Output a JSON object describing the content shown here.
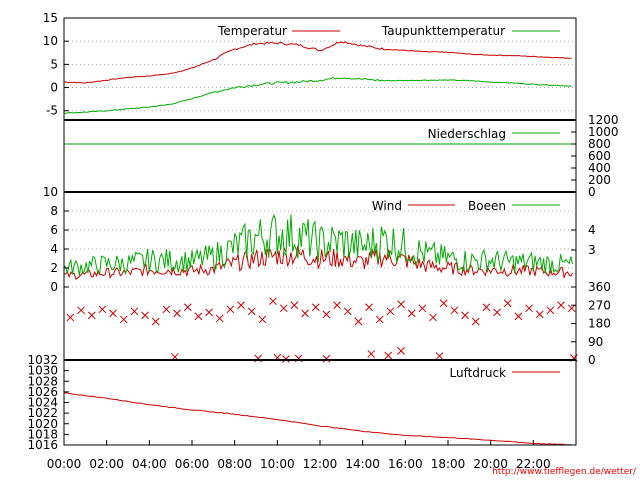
{
  "chart_data": [
    {
      "type": "line",
      "panel": "temperature",
      "ylim": [
        -7,
        15
      ],
      "yticks": [
        "15",
        "10",
        "5",
        "0",
        "-5"
      ],
      "series": [
        {
          "name": "Temperatur",
          "color": "#cc0000",
          "x": [
            0,
            1,
            2,
            3,
            4,
            5,
            6,
            7,
            8,
            9,
            10,
            11,
            12,
            13,
            14,
            15,
            16,
            17,
            18,
            19,
            20,
            21,
            22,
            23.9
          ],
          "values": [
            1.2,
            1.0,
            1.6,
            2.2,
            2.5,
            3.0,
            4.2,
            6.0,
            8.3,
            9.5,
            9.6,
            9.2,
            8.0,
            10.0,
            9.0,
            8.3,
            8.0,
            7.7,
            7.6,
            7.2,
            7.0,
            6.9,
            6.7,
            6.3
          ]
        },
        {
          "name": "Taupunkttemperatur",
          "color": "#00aa00",
          "x": [
            0,
            1,
            2,
            3,
            4,
            5,
            6,
            7,
            8,
            9,
            10,
            11,
            12,
            13,
            14,
            15,
            16,
            17,
            18,
            19,
            20,
            21,
            22,
            23.9
          ],
          "values": [
            -5.5,
            -5.3,
            -5.0,
            -4.6,
            -4.2,
            -3.6,
            -2.4,
            -1.0,
            0.0,
            0.6,
            1.0,
            1.2,
            1.6,
            2.2,
            1.8,
            1.5,
            1.5,
            1.6,
            1.6,
            1.5,
            1.2,
            1.0,
            0.7,
            0.3
          ]
        }
      ]
    },
    {
      "type": "line",
      "panel": "precipitation",
      "ylim": [
        0,
        1200
      ],
      "yticks_right": [
        "1200",
        "1000",
        "800",
        "600",
        "400",
        "200",
        "0"
      ],
      "series": [
        {
          "name": "Niederschlag",
          "color": "#00aa00",
          "x": [
            0,
            24
          ],
          "values": [
            800,
            800
          ]
        }
      ]
    },
    {
      "type": "line",
      "panel": "wind",
      "ylim": [
        0,
        10
      ],
      "yticks": [
        "10",
        "8",
        "6",
        "4",
        "2",
        "0"
      ],
      "yticks_right": [
        "4",
        "3"
      ],
      "series": [
        {
          "name": "Wind",
          "color": "#cc0000",
          "x": [
            0,
            1,
            2,
            3,
            4,
            5,
            6,
            7,
            8,
            9,
            10,
            11,
            12,
            13,
            14,
            15,
            16,
            17,
            18,
            19,
            20,
            21,
            22,
            23.9
          ],
          "values": [
            1.2,
            1.3,
            1.5,
            1.5,
            1.8,
            1.8,
            1.7,
            1.9,
            2.5,
            3.0,
            3.3,
            3.4,
            3.0,
            3.0,
            2.6,
            3.2,
            2.8,
            2.2,
            2.0,
            1.8,
            1.8,
            1.7,
            1.7,
            1.5
          ]
        },
        {
          "name": "Boeen",
          "color": "#00aa00",
          "x": [
            0,
            1,
            2,
            3,
            4,
            5,
            6,
            7,
            8,
            9,
            10,
            11,
            12,
            13,
            14,
            15,
            16,
            17,
            18,
            19,
            20,
            21,
            22,
            23.9
          ],
          "values": [
            2.0,
            2.2,
            2.4,
            2.5,
            2.8,
            2.8,
            2.7,
            3.2,
            4.2,
            5.2,
            5.6,
            5.4,
            4.6,
            4.8,
            4.2,
            5.0,
            4.3,
            3.4,
            3.0,
            2.8,
            2.8,
            2.6,
            2.6,
            2.3
          ]
        }
      ]
    },
    {
      "type": "scatter",
      "panel": "wind-direction",
      "ylim": [
        0,
        360
      ],
      "yticks_right": [
        "360",
        "270",
        "180",
        "90",
        "0"
      ],
      "series": [
        {
          "color": "#cc0000",
          "x": [
            0.3,
            0.8,
            1.3,
            1.8,
            2.3,
            2.8,
            3.3,
            3.8,
            4.3,
            4.8,
            5.3,
            5.8,
            6.3,
            6.8,
            7.3,
            7.8,
            8.3,
            8.8,
            9.3,
            9.8,
            10.3,
            10.8,
            11.3,
            11.8,
            12.3,
            12.8,
            13.3,
            13.8,
            14.3,
            14.8,
            15.3,
            15.8,
            16.3,
            16.8,
            17.3,
            17.8,
            18.3,
            18.8,
            19.3,
            19.8,
            20.3,
            20.8,
            21.3,
            21.8,
            22.3,
            22.8,
            23.3,
            23.8
          ],
          "values": [
            210,
            245,
            220,
            250,
            230,
            200,
            240,
            220,
            190,
            250,
            230,
            260,
            215,
            235,
            205,
            250,
            270,
            240,
            200,
            290,
            255,
            270,
            230,
            260,
            225,
            270,
            240,
            190,
            260,
            200,
            240,
            275,
            230,
            255,
            210,
            280,
            245,
            220,
            190,
            260,
            235,
            280,
            215,
            255,
            225,
            245,
            270,
            255
          ]
        },
        {
          "color": "#cc0000",
          "x": [
            5.2,
            9.1,
            10.0,
            10.4,
            11.0,
            12.3,
            14.4,
            15.2,
            15.8,
            17.6,
            23.9
          ],
          "values": [
            15,
            8,
            12,
            5,
            8,
            6,
            30,
            22,
            45,
            20,
            10
          ]
        }
      ]
    },
    {
      "type": "line",
      "panel": "pressure",
      "ylim": [
        1016,
        1032
      ],
      "yticks": [
        "1032",
        "1030",
        "1028",
        "1026",
        "1024",
        "1022",
        "1020",
        "1018",
        "1016"
      ],
      "series": [
        {
          "name": "Luftdruck",
          "color": "#cc0000",
          "x": [
            0,
            2,
            4,
            6,
            8,
            10,
            12,
            14,
            16,
            18,
            20,
            22,
            23.9
          ],
          "values": [
            1025.8,
            1024.8,
            1023.6,
            1022.6,
            1021.8,
            1020.8,
            1019.6,
            1018.6,
            1017.8,
            1017.4,
            1016.9,
            1016.3,
            1016.0
          ]
        }
      ]
    }
  ],
  "legend": {
    "temperatur": "Temperatur",
    "taupunkt": "Taupunkttemperatur",
    "niederschlag": "Niederschlag",
    "wind": "Wind",
    "boeen": "Boeen",
    "luftdruck": "Luftdruck"
  },
  "xticks": [
    "00:00",
    "02:00",
    "04:00",
    "06:00",
    "08:00",
    "10:00",
    "12:00",
    "14:00",
    "16:00",
    "18:00",
    "20:00",
    "22:00"
  ],
  "credit": "http://www.tiefflegen.de/wetter/"
}
